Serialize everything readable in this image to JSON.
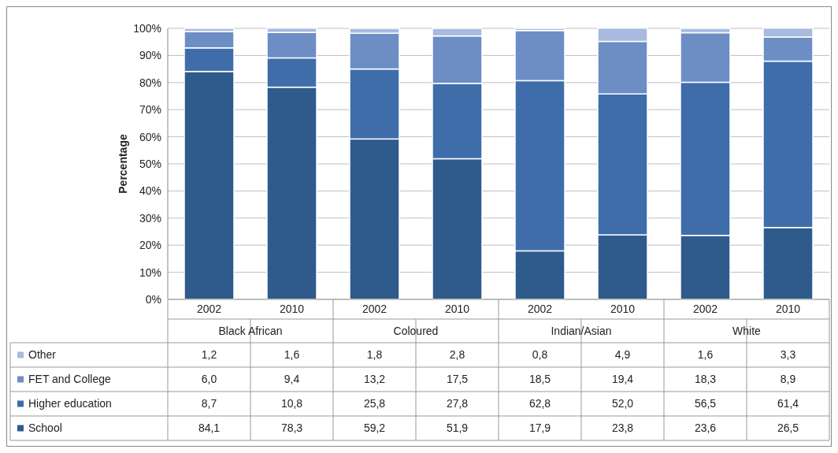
{
  "chart_data": {
    "type": "bar",
    "stacked": true,
    "ylabel": "Percentage",
    "categories": [
      "2002",
      "2010",
      "2002",
      "2010",
      "2002",
      "2010",
      "2002",
      "2010"
    ],
    "annotations": [
      "Black African",
      "Coloured",
      "Indian/Asian",
      "White"
    ],
    "series": [
      {
        "name": "School",
        "color": "#2f5b8c",
        "values": [
          84.1,
          78.3,
          59.2,
          51.9,
          17.9,
          23.8,
          23.6,
          26.5
        ],
        "value_labels": [
          "84,1",
          "78,3",
          "59,2",
          "51,9",
          "17,9",
          "23,8",
          "23,6",
          "26,5"
        ]
      },
      {
        "name": "Higher education",
        "color": "#3e6daa",
        "values": [
          8.7,
          10.8,
          25.8,
          27.8,
          62.8,
          52.0,
          56.5,
          61.4
        ],
        "value_labels": [
          "8,7",
          "10,8",
          "25,8",
          "27,8",
          "62,8",
          "52,0",
          "56,5",
          "61,4"
        ]
      },
      {
        "name": "FET and College",
        "color": "#6d8ec5",
        "values": [
          6.0,
          9.4,
          13.2,
          17.5,
          18.5,
          19.4,
          18.3,
          8.9
        ],
        "value_labels": [
          "6,0",
          "9,4",
          "13,2",
          "17,5",
          "18,5",
          "19,4",
          "18,3",
          "8,9"
        ]
      },
      {
        "name": "Other",
        "color": "#a8bbdf",
        "values": [
          1.2,
          1.6,
          1.8,
          2.8,
          0.8,
          4.9,
          1.6,
          3.3
        ],
        "value_labels": [
          "1,2",
          "1,6",
          "1,8",
          "2,8",
          "0,8",
          "4,9",
          "1,6",
          "3,3"
        ]
      }
    ],
    "ylim": [
      0,
      100
    ],
    "yticks": [
      {
        "value": 0,
        "label": "0%"
      },
      {
        "value": 10,
        "label": "10%"
      },
      {
        "value": 20,
        "label": "20%"
      },
      {
        "value": 30,
        "label": "30%"
      },
      {
        "value": 40,
        "label": "40%"
      },
      {
        "value": 50,
        "label": "50%"
      },
      {
        "value": 60,
        "label": "60%"
      },
      {
        "value": 70,
        "label": "70%"
      },
      {
        "value": 80,
        "label": "80%"
      },
      {
        "value": 90,
        "label": "90%"
      },
      {
        "value": 100,
        "label": "100%"
      }
    ],
    "grid": "y",
    "legend": "bottom"
  }
}
